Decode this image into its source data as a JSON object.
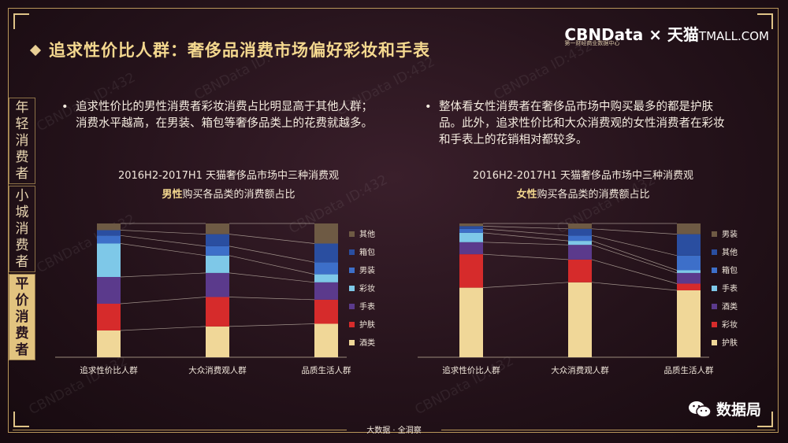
{
  "header": {
    "title": "追求性价比人群：奢侈品消费市场偏好彩妆和手表",
    "logo_main": "CBNData",
    "logo_cross": "×",
    "logo_partner": "天猫",
    "logo_partner_en": "TMALL.COM",
    "logo_sub": "第一财经商业数据中心"
  },
  "sidebar": {
    "tabs": [
      {
        "label": "年轻消费者",
        "active": false
      },
      {
        "label": "小城消费者",
        "active": false
      },
      {
        "label": "平价消费者",
        "active": true
      }
    ]
  },
  "bullets": {
    "left": "追求性价比的男性消费者彩妆消费占比明显高于其他人群；消费水平越高，在男装、箱包等奢侈品类上的花费就越多。",
    "right": "整体看女性消费者在奢侈品市场中购买最多的都是护肤品。此外，追求性价比和大众消费观的女性消费者在彩妆和手表上的花销相对都较多。"
  },
  "chart_data": [
    {
      "type": "bar",
      "stacked": true,
      "title_line1": "2016H2-2017H1 天猫奢侈品市场中三种消费观",
      "title_highlight": "男性",
      "title_rest": "购买各品类的消费额占比",
      "categories": [
        "追求性价比人群",
        "大众消费观人群",
        "品质生活人群"
      ],
      "series": [
        {
          "name": "酒类",
          "color": "#f0d798",
          "values": [
            0.2,
            0.23,
            0.25
          ]
        },
        {
          "name": "护肤",
          "color": "#d62b2b",
          "values": [
            0.2,
            0.22,
            0.18
          ]
        },
        {
          "name": "手表",
          "color": "#5b3a8c",
          "values": [
            0.2,
            0.18,
            0.13
          ]
        },
        {
          "name": "彩妆",
          "color": "#7ec8e8",
          "values": [
            0.25,
            0.13,
            0.06
          ]
        },
        {
          "name": "男装",
          "color": "#3d6fc9",
          "values": [
            0.06,
            0.07,
            0.09
          ]
        },
        {
          "name": "箱包",
          "color": "#2a4ea0",
          "values": [
            0.04,
            0.09,
            0.14
          ]
        },
        {
          "name": "其他",
          "color": "#6e5a44",
          "values": [
            0.05,
            0.08,
            0.15
          ]
        }
      ],
      "ylim": [
        0,
        1
      ]
    },
    {
      "type": "bar",
      "stacked": true,
      "title_line1": "2016H2-2017H1 天猫奢侈品市场中三种消费观",
      "title_highlight": "女性",
      "title_rest": "购买各品类的消费额占比",
      "categories": [
        "追求性价比人群",
        "大众消费观人群",
        "品质生活人群"
      ],
      "series": [
        {
          "name": "护肤",
          "color": "#f0d798",
          "values": [
            0.52,
            0.56,
            0.5
          ]
        },
        {
          "name": "彩妆",
          "color": "#d62b2b",
          "values": [
            0.25,
            0.17,
            0.05
          ]
        },
        {
          "name": "酒类",
          "color": "#5b3a8c",
          "values": [
            0.09,
            0.11,
            0.08
          ]
        },
        {
          "name": "手表",
          "color": "#7ec8e8",
          "values": [
            0.07,
            0.03,
            0.02
          ]
        },
        {
          "name": "箱包",
          "color": "#3d6fc9",
          "values": [
            0.03,
            0.04,
            0.11
          ]
        },
        {
          "name": "其他",
          "color": "#2a4ea0",
          "values": [
            0.02,
            0.05,
            0.16
          ]
        },
        {
          "name": "男装",
          "color": "#6e5a44",
          "values": [
            0.02,
            0.04,
            0.08
          ]
        }
      ],
      "legend_order": [
        "男装",
        "其他",
        "箱包",
        "手表",
        "酒类",
        "彩妆",
        "护肤"
      ],
      "ylim": [
        0,
        1
      ]
    }
  ],
  "watermark": "CBNData ID:432",
  "footer": {
    "text": "大数据 · 全洞察"
  },
  "wechat": {
    "name": "数据局"
  },
  "colors": {
    "gold": "#f4d88f",
    "accent": "#e2c37f"
  }
}
